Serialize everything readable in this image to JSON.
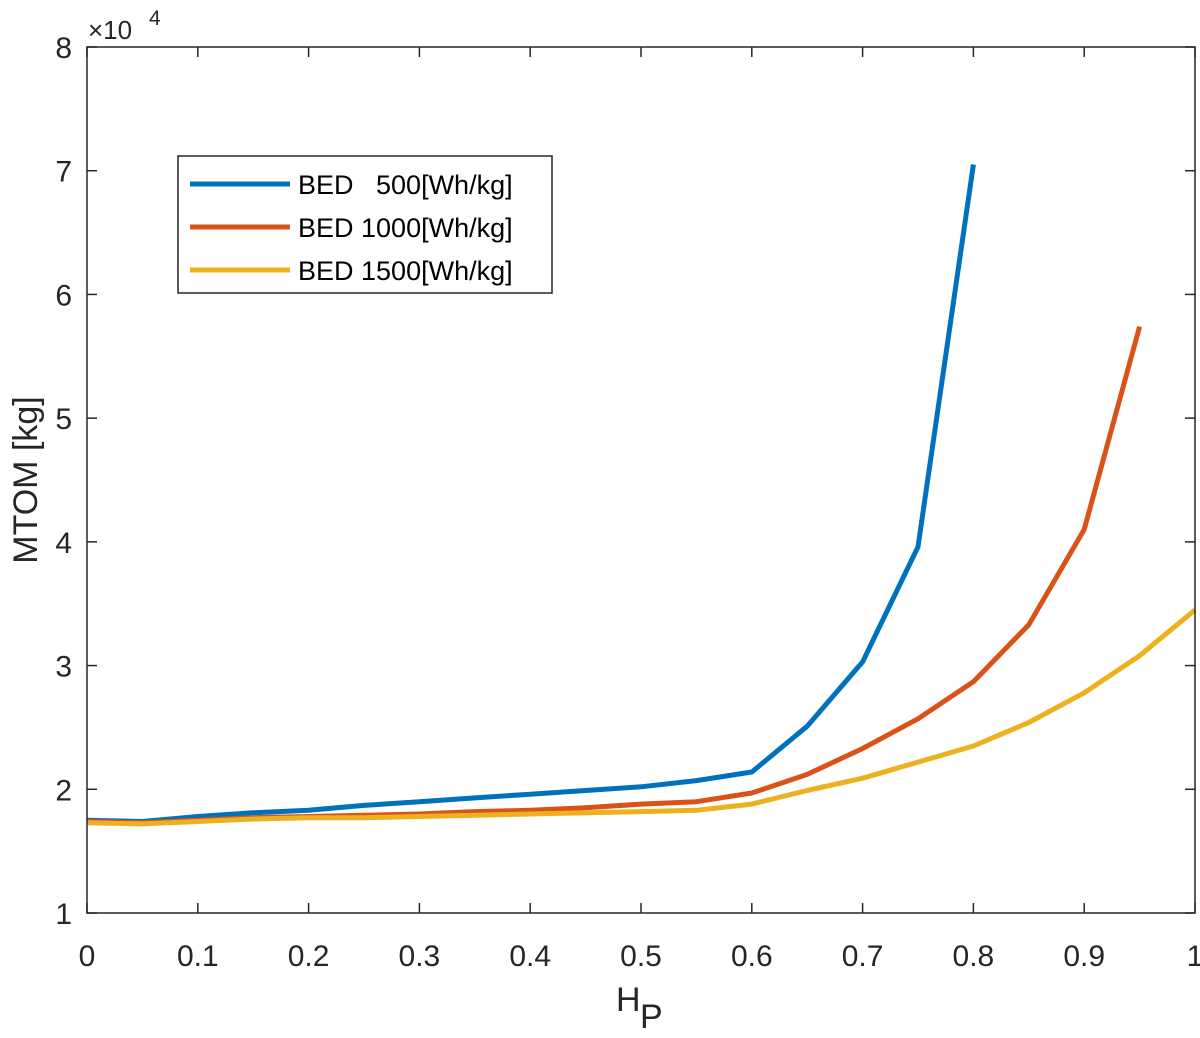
{
  "chart_data": {
    "type": "line",
    "xlabel_main": "H",
    "xlabel_sub": "P",
    "ylabel": "MTOM [kg]",
    "y_exponent_prefix": "×10",
    "y_exponent_power": "4",
    "xlim": [
      0,
      1
    ],
    "ylim": [
      1,
      8
    ],
    "x_ticks": [
      0,
      0.1,
      0.2,
      0.3,
      0.4,
      0.5,
      0.6,
      0.7,
      0.8,
      0.9,
      1
    ],
    "x_tick_labels": [
      "0",
      "0.1",
      "0.2",
      "0.3",
      "0.4",
      "0.5",
      "0.6",
      "0.7",
      "0.8",
      "0.9",
      "1"
    ],
    "y_ticks": [
      1,
      2,
      3,
      4,
      5,
      6,
      7,
      8
    ],
    "y_tick_labels": [
      "1",
      "2",
      "3",
      "4",
      "5",
      "6",
      "7",
      "8"
    ],
    "grid": false,
    "legend_position": "upper-left",
    "series": [
      {
        "name": "BED   500[Wh/kg]",
        "color": "#0072BD",
        "x": [
          0,
          0.05,
          0.1,
          0.15,
          0.2,
          0.25,
          0.3,
          0.35,
          0.4,
          0.45,
          0.5,
          0.55,
          0.6,
          0.65,
          0.7,
          0.75,
          0.8
        ],
        "y": [
          1.75,
          1.74,
          1.78,
          1.81,
          1.83,
          1.87,
          1.9,
          1.93,
          1.96,
          1.99,
          2.02,
          2.07,
          2.14,
          2.51,
          3.03,
          3.96,
          7.05
        ]
      },
      {
        "name": "BED 1000[Wh/kg]",
        "color": "#D95319",
        "x": [
          0,
          0.05,
          0.1,
          0.15,
          0.2,
          0.25,
          0.3,
          0.35,
          0.4,
          0.45,
          0.5,
          0.55,
          0.6,
          0.65,
          0.7,
          0.75,
          0.8,
          0.85,
          0.9,
          0.95
        ],
        "y": [
          1.74,
          1.73,
          1.75,
          1.77,
          1.78,
          1.79,
          1.8,
          1.82,
          1.83,
          1.85,
          1.88,
          1.9,
          1.97,
          2.12,
          2.33,
          2.57,
          2.87,
          3.33,
          4.1,
          5.74
        ]
      },
      {
        "name": "BED 1500[Wh/kg]",
        "color": "#EDB120",
        "x": [
          0,
          0.05,
          0.1,
          0.15,
          0.2,
          0.25,
          0.3,
          0.35,
          0.4,
          0.45,
          0.5,
          0.55,
          0.6,
          0.65,
          0.7,
          0.75,
          0.8,
          0.85,
          0.9,
          0.95,
          1.0
        ],
        "y": [
          1.73,
          1.72,
          1.74,
          1.76,
          1.77,
          1.77,
          1.78,
          1.79,
          1.8,
          1.81,
          1.82,
          1.83,
          1.88,
          1.99,
          2.09,
          2.22,
          2.35,
          2.54,
          2.78,
          3.08,
          3.45
        ]
      }
    ]
  }
}
